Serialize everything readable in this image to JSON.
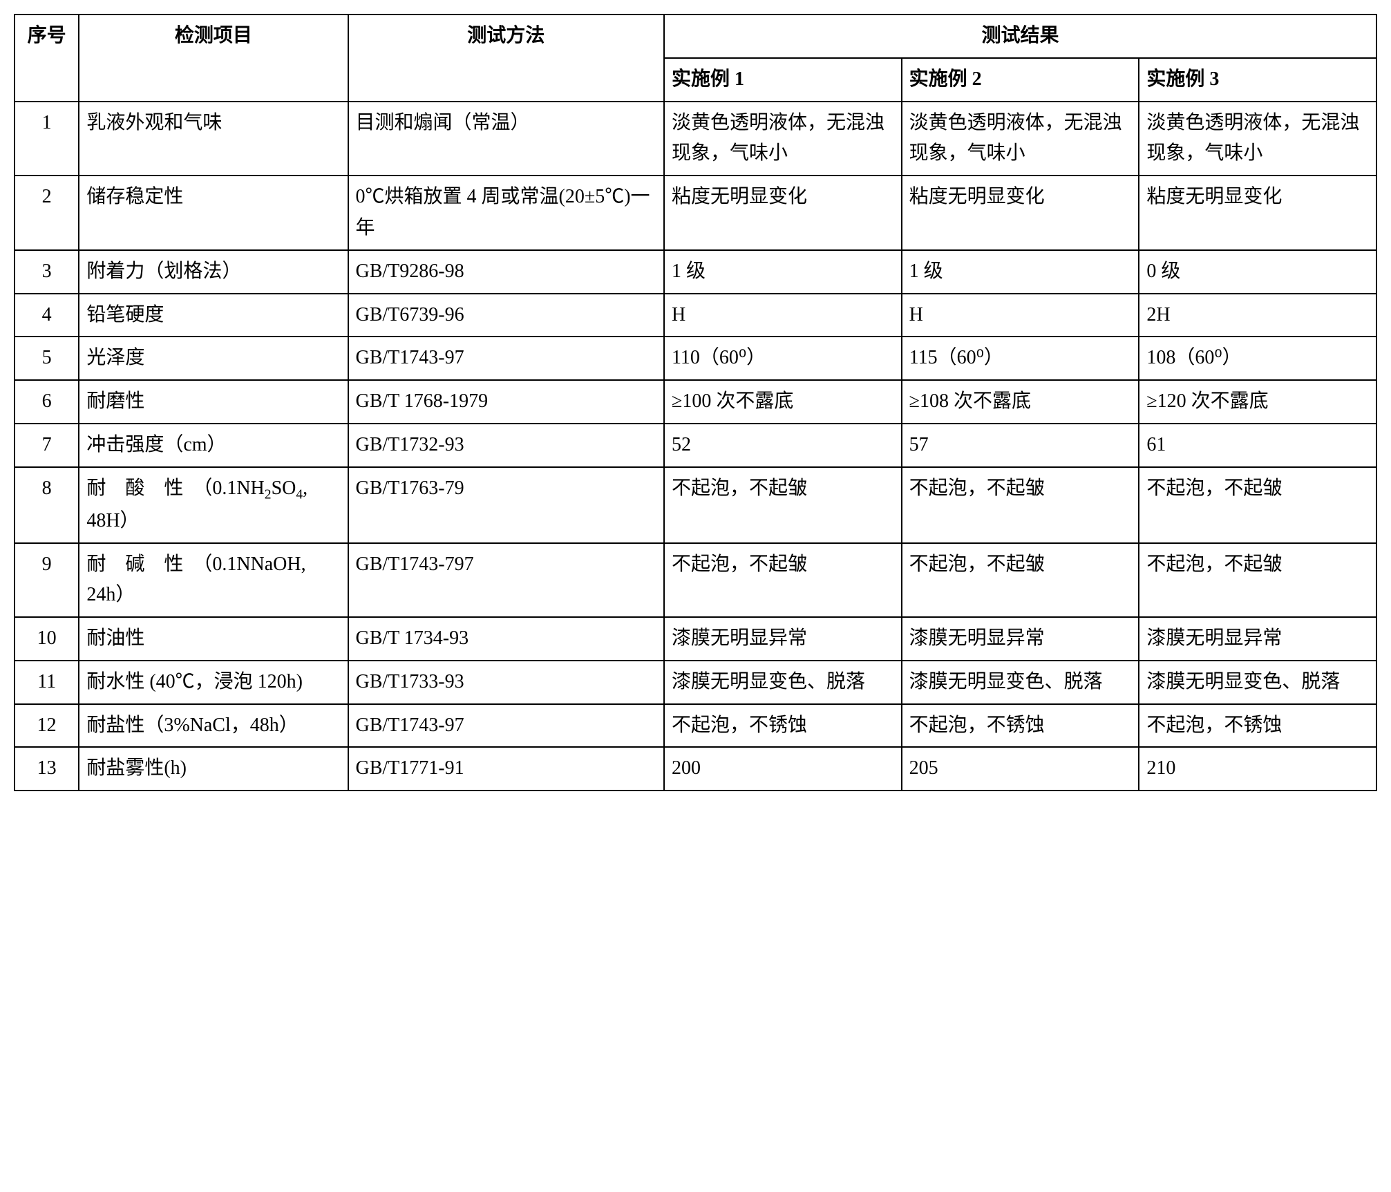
{
  "table": {
    "headers": {
      "seq": "序号",
      "item": "检测项目",
      "method": "测试方法",
      "result": "测试结果",
      "ex1": "实施例 1",
      "ex2": "实施例 2",
      "ex3": "实施例 3"
    },
    "rows": [
      {
        "seq": "1",
        "item": "乳液外观和气味",
        "method": "目测和煽闻（常温）",
        "r1": "淡黄色透明液体，无混浊现象，气味小",
        "r2": "淡黄色透明液体，无混浊现象，气味小",
        "r3": "淡黄色透明液体，无混浊现象，气味小"
      },
      {
        "seq": "2",
        "item": "储存稳定性",
        "method": "0℃烘箱放置 4 周或常温(20±5℃)一年",
        "r1": "粘度无明显变化",
        "r2": "粘度无明显变化",
        "r3": "粘度无明显变化"
      },
      {
        "seq": "3",
        "item": "附着力（划格法）",
        "method": "GB/T9286-98",
        "r1": "1 级",
        "r2": "1 级",
        "r3": "0 级"
      },
      {
        "seq": "4",
        "item": "铅笔硬度",
        "method": "GB/T6739-96",
        "r1": "H",
        "r2": "H",
        "r3": "2H"
      },
      {
        "seq": "5",
        "item": "光泽度",
        "method": "GB/T1743-97",
        "r1": "110（60⁰）",
        "r2": "115（60⁰）",
        "r3": "108（60⁰）"
      },
      {
        "seq": "6",
        "item": "耐磨性",
        "method": "GB/T 1768-1979",
        "r1": "≥100 次不露底",
        "r2": "≥108 次不露底",
        "r3": "≥120 次不露底"
      },
      {
        "seq": "7",
        "item": "冲击强度（cm）",
        "method": "GB/T1732-93",
        "r1": "52",
        "r2": "57",
        "r3": "61"
      },
      {
        "seq": "8",
        "item_html": "耐　酸　性　（0.1NH<sub>2</sub>SO<sub>4</sub>, 48H）",
        "method": "GB/T1763-79",
        "r1": "不起泡，不起皱",
        "r2": "不起泡，不起皱",
        "r3": "不起泡，不起皱"
      },
      {
        "seq": "9",
        "item": "耐　碱　性　（0.1NNaOH, 24h）",
        "method": "GB/T1743-797",
        "r1": "不起泡，不起皱",
        "r2": "不起泡，不起皱",
        "r3": "不起泡，不起皱"
      },
      {
        "seq": "10",
        "item": "耐油性",
        "method": "GB/T 1734-93",
        "r1": "漆膜无明显异常",
        "r2": "漆膜无明显异常",
        "r3": "漆膜无明显异常"
      },
      {
        "seq": "11",
        "item": "耐水性 (40℃，浸泡 120h)",
        "method": "GB/T1733-93",
        "r1": "漆膜无明显变色、脱落",
        "r2": "漆膜无明显变色、脱落",
        "r3": "漆膜无明显变色、脱落"
      },
      {
        "seq": "12",
        "item": "耐盐性（3%NaCl，48h）",
        "method": "GB/T1743-97",
        "r1": "不起泡，不锈蚀",
        "r2": "不起泡，不锈蚀",
        "r3": "不起泡，不锈蚀"
      },
      {
        "seq": "13",
        "item": "耐盐雾性(h)",
        "method": "GB/T1771-91",
        "r1": "200",
        "r2": "205",
        "r3": "210"
      }
    ],
    "styling": {
      "border_color": "#000000",
      "border_width": 2,
      "background_color": "#ffffff",
      "font_family": "SimSun",
      "font_size": 28,
      "text_color": "#000000",
      "cell_padding": "8px 10px",
      "line_height": 1.6
    }
  }
}
